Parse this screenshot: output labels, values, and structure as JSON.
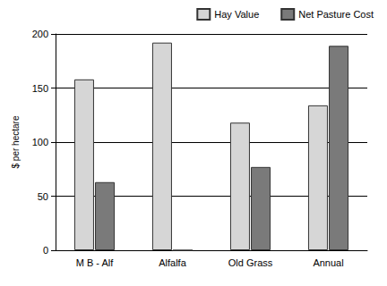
{
  "chart_data": {
    "type": "bar",
    "y_label": "$ per hectare",
    "categories": [
      "M B - Alf",
      "Alfalfa",
      "Old Grass",
      "Annual"
    ],
    "series": [
      {
        "name": "Hay Value",
        "color": "#d6d6d6",
        "values": [
          158,
          192,
          118,
          134
        ]
      },
      {
        "name": "Net Pasture Cost",
        "color": "#7a7a7a",
        "values": [
          63,
          0,
          77,
          189
        ]
      }
    ],
    "ylim": [
      0,
      200
    ],
    "yticks": [
      0,
      50,
      100,
      150,
      200
    ],
    "grid": true,
    "legend": "top-right"
  }
}
